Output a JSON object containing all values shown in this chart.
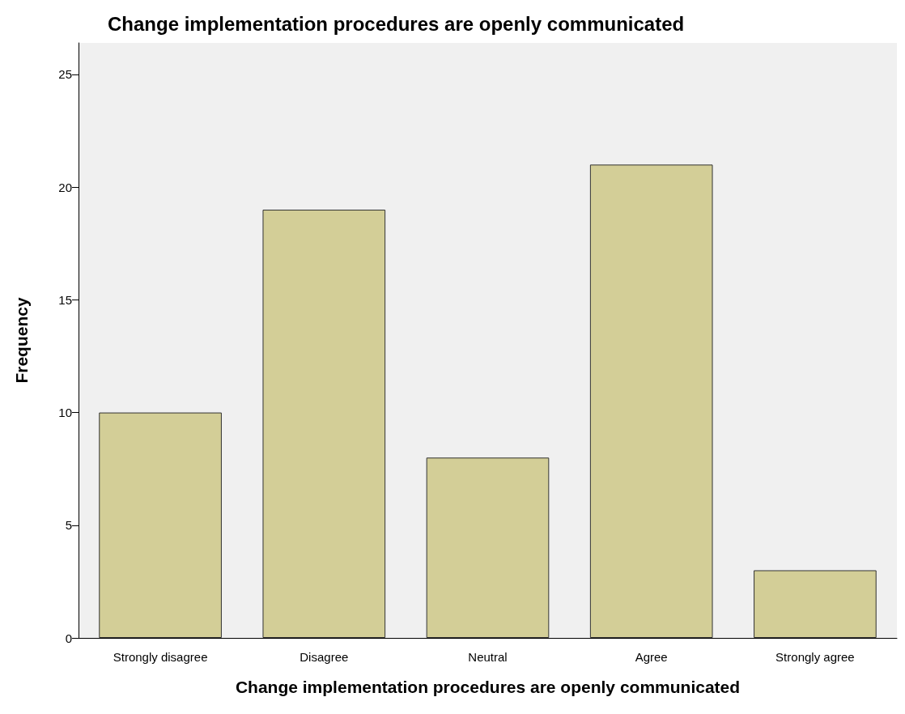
{
  "chart_data": {
    "type": "bar",
    "title": "Change implementation procedures are openly communicated",
    "xlabel": "Change implementation procedures are openly communicated",
    "ylabel": "Frequency",
    "categories": [
      "Strongly disagree",
      "Disagree",
      "Neutral",
      "Agree",
      "Strongly agree"
    ],
    "values": [
      10,
      19,
      8,
      21,
      3
    ],
    "color": "#d3ce97",
    "ylim": [
      0,
      26.4
    ],
    "yticks": [
      0,
      5,
      10,
      15,
      20,
      25
    ],
    "grid": false
  }
}
